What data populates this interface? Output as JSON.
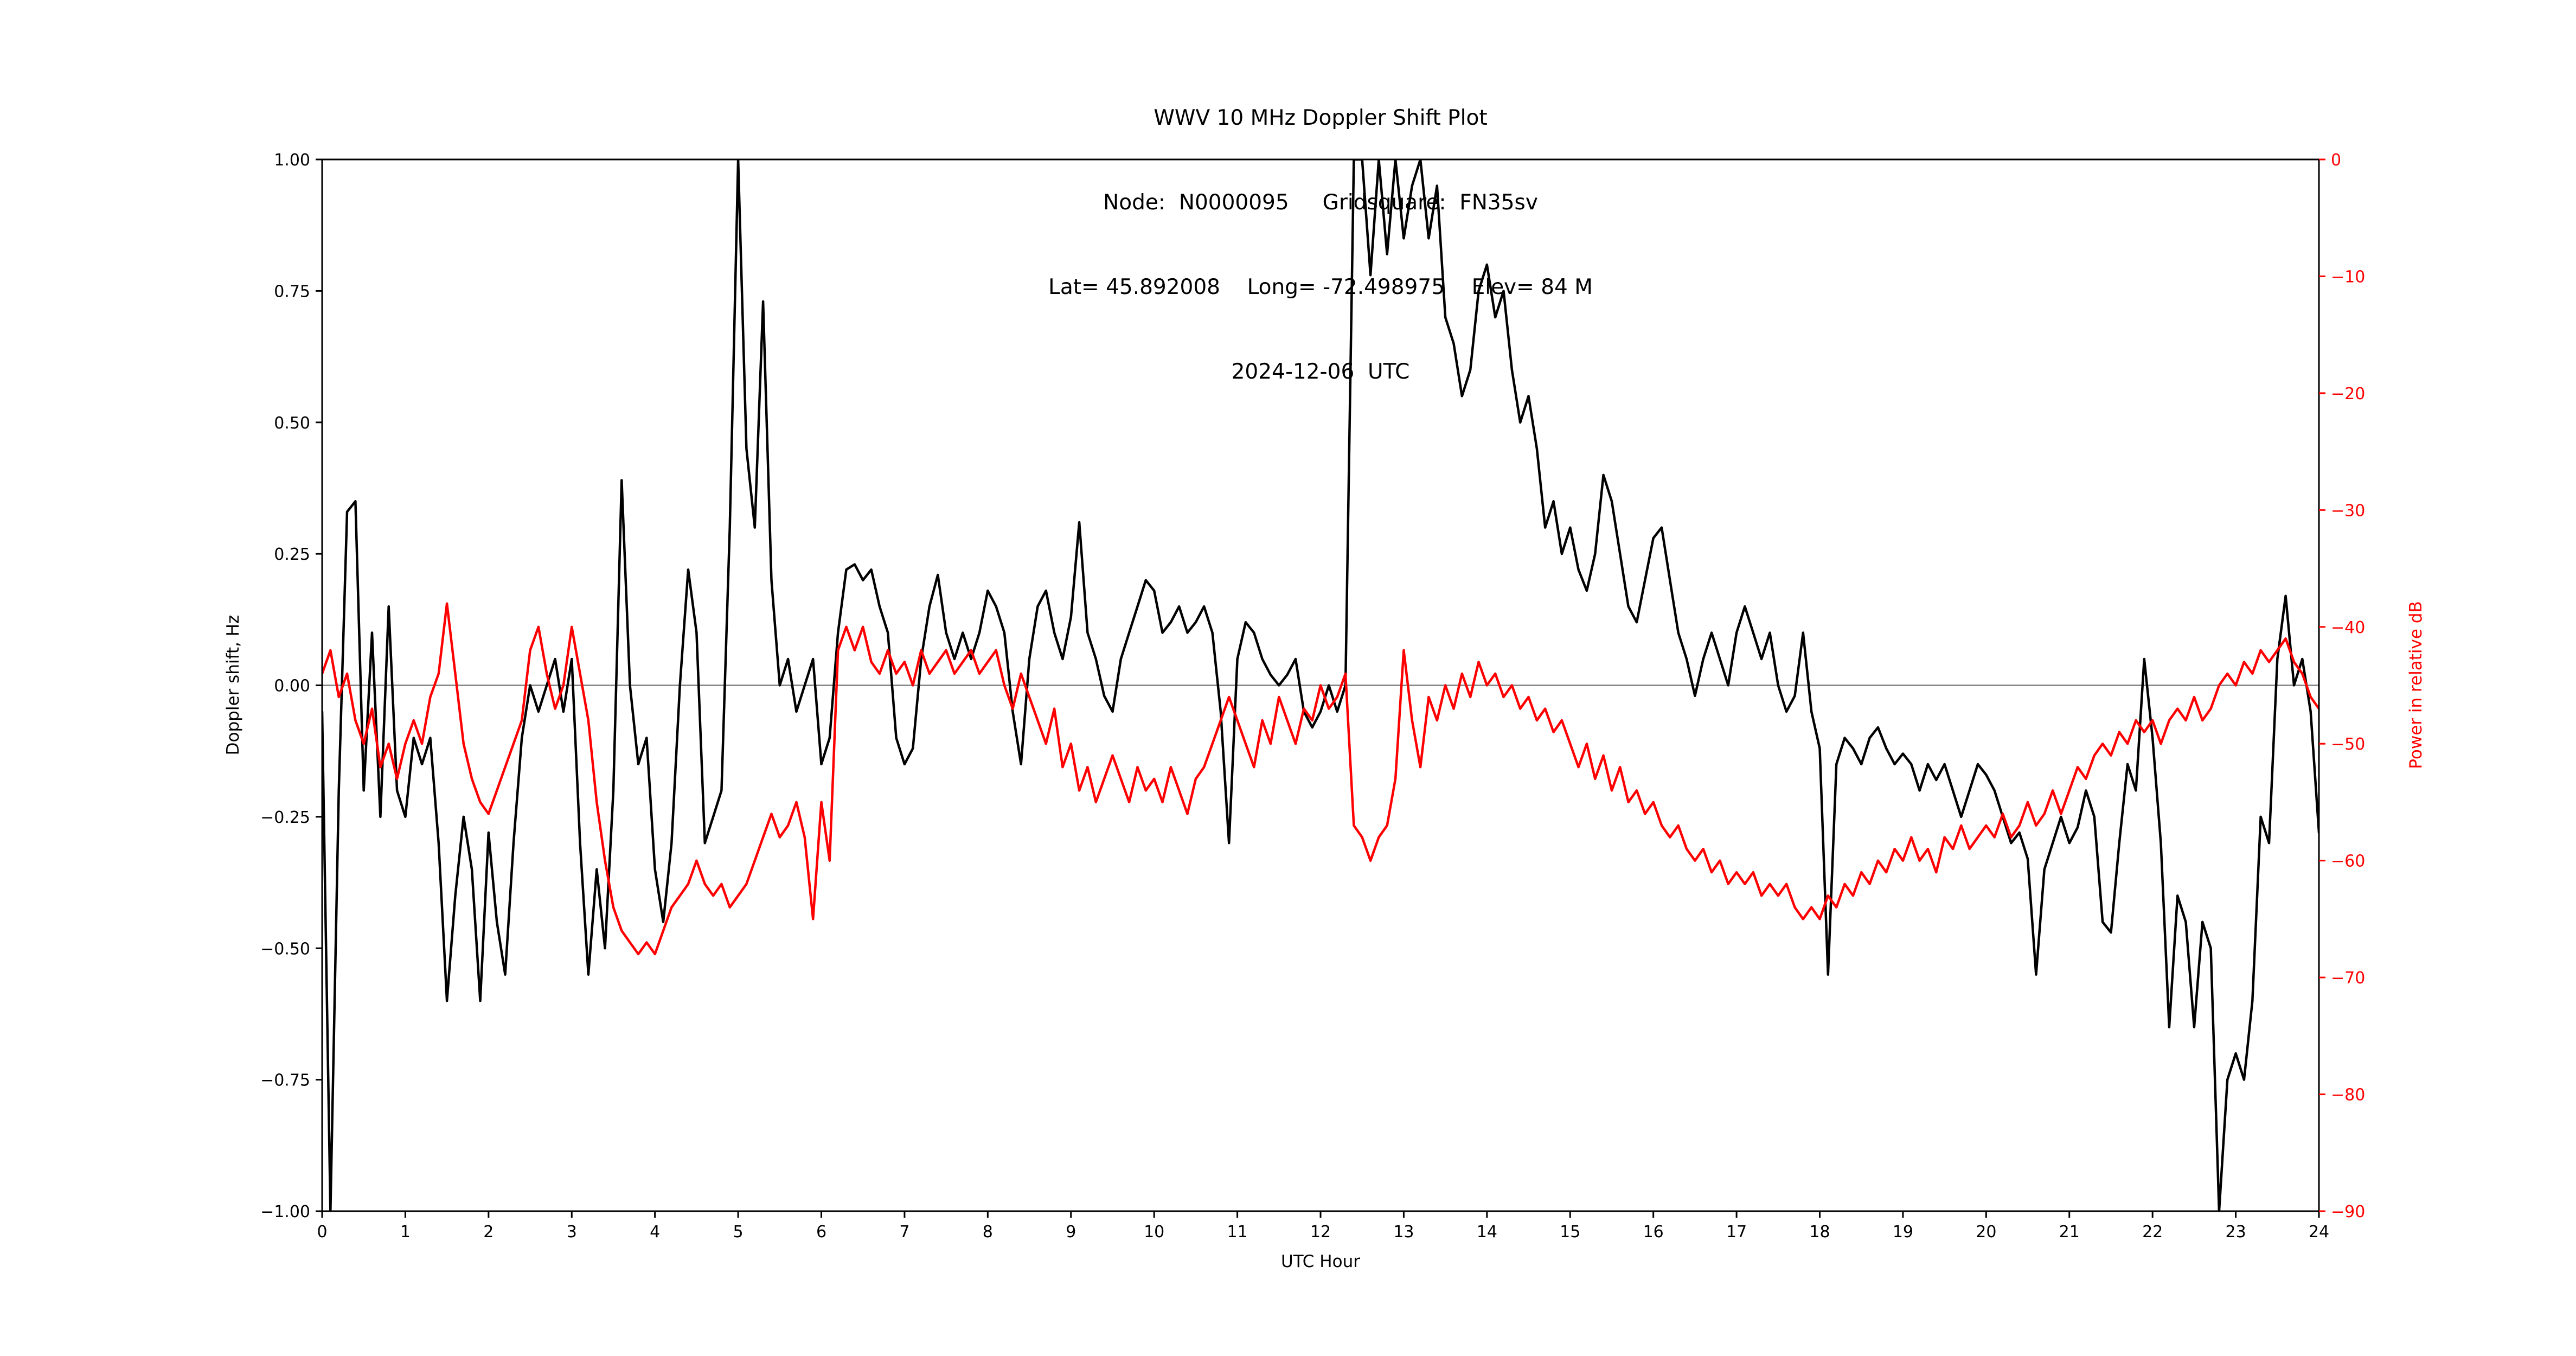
{
  "header": {
    "title": "WWV 10 MHz Doppler Shift Plot",
    "node_line": "Node:  N0000095     Gridsquare:  FN35sv",
    "location_line": "Lat= 45.892008    Long= -72.498975    Elev= 84 M",
    "date_line": "2024-12-06  UTC"
  },
  "chart_data": {
    "type": "line",
    "title": "WWV 10 MHz Doppler Shift Plot",
    "subtitle_lines": [
      "Node:  N0000095     Gridsquare:  FN35sv",
      "Lat= 45.892008    Long= -72.498975    Elev= 84 M",
      "2024-12-06  UTC"
    ],
    "xlabel": "UTC Hour",
    "ylabel_left": "Doppler shift, Hz",
    "ylabel_right": "Power in relative dB",
    "x_range": [
      0,
      24
    ],
    "y_left_range": [
      -1.0,
      1.0
    ],
    "y_right_range": [
      -90,
      0
    ],
    "grid": false,
    "legend": "none",
    "zero_line": 0.0,
    "colors": {
      "doppler": "#000000",
      "power": "#ff0000",
      "zero_line": "#808080",
      "frame": "#000000"
    },
    "x_ticks": {
      "values": [
        0,
        1,
        2,
        3,
        4,
        5,
        6,
        7,
        8,
        9,
        10,
        11,
        12,
        13,
        14,
        15,
        16,
        17,
        18,
        19,
        20,
        21,
        22,
        23,
        24
      ],
      "labels": [
        "0",
        "1",
        "2",
        "3",
        "4",
        "5",
        "6",
        "7",
        "8",
        "9",
        "10",
        "11",
        "12",
        "13",
        "14",
        "15",
        "16",
        "17",
        "18",
        "19",
        "20",
        "21",
        "22",
        "23",
        "24"
      ]
    },
    "y_left_ticks": {
      "values": [
        1.0,
        0.75,
        0.5,
        0.25,
        0.0,
        -0.25,
        -0.5,
        -0.75,
        -1.0
      ],
      "labels": [
        "1.00",
        "0.75",
        "0.50",
        "0.25",
        "0.00",
        "−0.25",
        "−0.50",
        "−0.75",
        "−1.00"
      ]
    },
    "y_right_ticks": {
      "values": [
        0,
        -10,
        -20,
        -30,
        -40,
        -50,
        -60,
        -70,
        -80,
        -90
      ],
      "labels": [
        "0",
        "−10",
        "−20",
        "−30",
        "−40",
        "−50",
        "−60",
        "−70",
        "−80",
        "−90"
      ]
    },
    "x_start": 0,
    "x_step": 0.1,
    "series": [
      {
        "name": "Doppler shift (Hz)",
        "axis": "left",
        "color": "#000000",
        "values": [
          -0.05,
          -1.0,
          -0.2,
          0.33,
          0.35,
          -0.2,
          0.1,
          -0.25,
          0.15,
          -0.2,
          -0.25,
          -0.1,
          -0.15,
          -0.1,
          -0.3,
          -0.6,
          -0.4,
          -0.25,
          -0.35,
          -0.6,
          -0.28,
          -0.45,
          -0.55,
          -0.3,
          -0.1,
          0.0,
          -0.05,
          0.0,
          0.05,
          -0.05,
          0.05,
          -0.3,
          -0.55,
          -0.35,
          -0.5,
          -0.2,
          0.39,
          0.0,
          -0.15,
          -0.1,
          -0.35,
          -0.45,
          -0.3,
          0.0,
          0.22,
          0.1,
          -0.3,
          -0.25,
          -0.2,
          0.3,
          1.0,
          0.45,
          0.3,
          0.73,
          0.2,
          0.0,
          0.05,
          -0.05,
          0.0,
          0.05,
          -0.15,
          -0.1,
          0.1,
          0.22,
          0.23,
          0.2,
          0.22,
          0.15,
          0.1,
          -0.1,
          -0.15,
          -0.12,
          0.05,
          0.15,
          0.21,
          0.1,
          0.05,
          0.1,
          0.05,
          0.1,
          0.18,
          0.15,
          0.1,
          -0.05,
          -0.15,
          0.05,
          0.15,
          0.18,
          0.1,
          0.05,
          0.13,
          0.31,
          0.1,
          0.05,
          -0.02,
          -0.05,
          0.05,
          0.1,
          0.15,
          0.2,
          0.18,
          0.1,
          0.12,
          0.15,
          0.1,
          0.12,
          0.15,
          0.1,
          -0.05,
          -0.3,
          0.05,
          0.12,
          0.1,
          0.05,
          0.02,
          0.0,
          0.02,
          0.05,
          -0.05,
          -0.08,
          -0.05,
          0.0,
          -0.05,
          0.0,
          1.0,
          1.0,
          0.78,
          1.0,
          0.82,
          1.0,
          0.85,
          0.95,
          1.0,
          0.85,
          0.95,
          0.7,
          0.65,
          0.55,
          0.6,
          0.75,
          0.8,
          0.7,
          0.75,
          0.6,
          0.5,
          0.55,
          0.45,
          0.3,
          0.35,
          0.25,
          0.3,
          0.22,
          0.18,
          0.25,
          0.4,
          0.35,
          0.25,
          0.15,
          0.12,
          0.2,
          0.28,
          0.3,
          0.2,
          0.1,
          0.05,
          -0.02,
          0.05,
          0.1,
          0.05,
          0.0,
          0.1,
          0.15,
          0.1,
          0.05,
          0.1,
          0.0,
          -0.05,
          -0.02,
          0.1,
          -0.05,
          -0.12,
          -0.55,
          -0.15,
          -0.1,
          -0.12,
          -0.15,
          -0.1,
          -0.08,
          -0.12,
          -0.15,
          -0.13,
          -0.15,
          -0.2,
          -0.15,
          -0.18,
          -0.15,
          -0.2,
          -0.25,
          -0.2,
          -0.15,
          -0.17,
          -0.2,
          -0.25,
          -0.3,
          -0.28,
          -0.33,
          -0.55,
          -0.35,
          -0.3,
          -0.25,
          -0.3,
          -0.27,
          -0.2,
          -0.25,
          -0.45,
          -0.47,
          -0.3,
          -0.15,
          -0.2,
          0.05,
          -0.1,
          -0.3,
          -0.65,
          -0.4,
          -0.45,
          -0.65,
          -0.45,
          -0.5,
          -1.0,
          -0.75,
          -0.7,
          -0.75,
          -0.6,
          -0.25,
          -0.3,
          0.05,
          0.17,
          0.0,
          0.05,
          -0.05,
          -0.28
        ]
      },
      {
        "name": "Power (relative dB)",
        "axis": "right",
        "color": "#ff0000",
        "values": [
          -44,
          -42,
          -46,
          -44,
          -48,
          -50,
          -47,
          -52,
          -50,
          -53,
          -50,
          -48,
          -50,
          -46,
          -44,
          -38,
          -44,
          -50,
          -53,
          -55,
          -56,
          -54,
          -52,
          -50,
          -48,
          -42,
          -40,
          -44,
          -47,
          -45,
          -40,
          -44,
          -48,
          -55,
          -60,
          -64,
          -66,
          -67,
          -68,
          -67,
          -68,
          -66,
          -64,
          -63,
          -62,
          -60,
          -62,
          -63,
          -62,
          -64,
          -63,
          -62,
          -60,
          -58,
          -56,
          -58,
          -57,
          -55,
          -58,
          -65,
          -55,
          -60,
          -42,
          -40,
          -42,
          -40,
          -43,
          -44,
          -42,
          -44,
          -43,
          -45,
          -42,
          -44,
          -43,
          -42,
          -44,
          -43,
          -42,
          -44,
          -43,
          -42,
          -45,
          -47,
          -44,
          -46,
          -48,
          -50,
          -47,
          -52,
          -50,
          -54,
          -52,
          -55,
          -53,
          -51,
          -53,
          -55,
          -52,
          -54,
          -53,
          -55,
          -52,
          -54,
          -56,
          -53,
          -52,
          -50,
          -48,
          -46,
          -48,
          -50,
          -52,
          -48,
          -50,
          -46,
          -48,
          -50,
          -47,
          -48,
          -45,
          -47,
          -46,
          -44,
          -57,
          -58,
          -60,
          -58,
          -57,
          -53,
          -42,
          -48,
          -52,
          -46,
          -48,
          -45,
          -47,
          -44,
          -46,
          -43,
          -45,
          -44,
          -46,
          -45,
          -47,
          -46,
          -48,
          -47,
          -49,
          -48,
          -50,
          -52,
          -50,
          -53,
          -51,
          -54,
          -52,
          -55,
          -54,
          -56,
          -55,
          -57,
          -58,
          -57,
          -59,
          -60,
          -59,
          -61,
          -60,
          -62,
          -61,
          -62,
          -61,
          -63,
          -62,
          -63,
          -62,
          -64,
          -65,
          -64,
          -65,
          -63,
          -64,
          -62,
          -63,
          -61,
          -62,
          -60,
          -61,
          -59,
          -60,
          -58,
          -60,
          -59,
          -61,
          -58,
          -59,
          -57,
          -59,
          -58,
          -57,
          -58,
          -56,
          -58,
          -57,
          -55,
          -57,
          -56,
          -54,
          -56,
          -54,
          -52,
          -53,
          -51,
          -50,
          -51,
          -49,
          -50,
          -48,
          -49,
          -48,
          -50,
          -48,
          -47,
          -48,
          -46,
          -48,
          -47,
          -45,
          -44,
          -45,
          -43,
          -44,
          -42,
          -43,
          -42,
          -41,
          -43,
          -44,
          -46,
          -47
        ]
      }
    ]
  }
}
